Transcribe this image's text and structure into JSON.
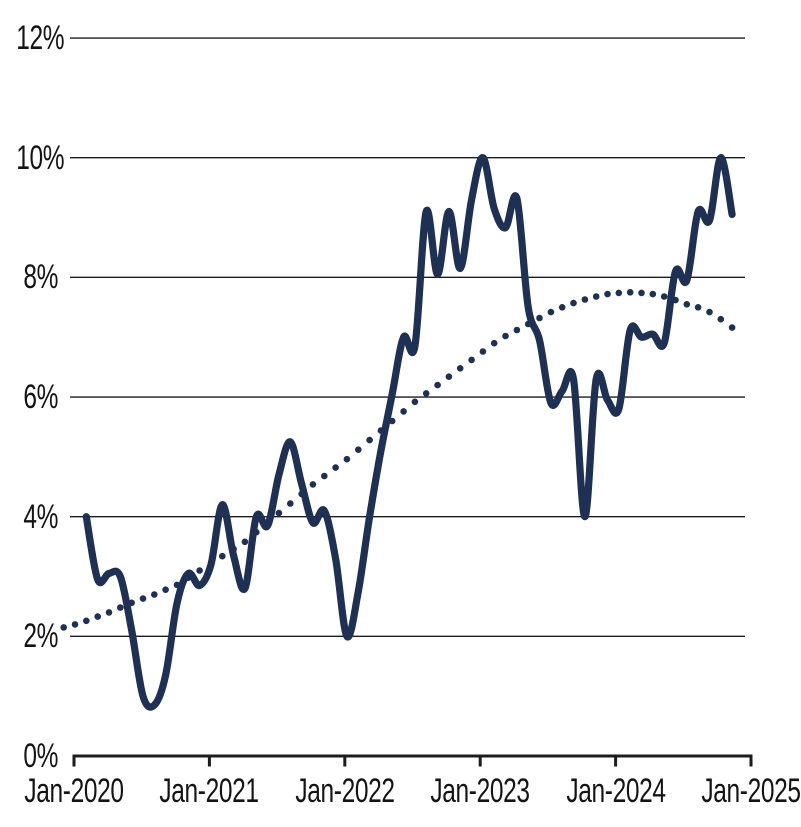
{
  "page": {
    "background": "#ffffff"
  },
  "chart_data": {
    "type": "line",
    "title": "",
    "legend": "none",
    "grid": "horizontal-only",
    "x_axis": {
      "tick_labels": [
        "Jan-2020",
        "Jan-2021",
        "Jan-2022",
        "Jan-2023",
        "Jan-2024",
        "Jan-2025"
      ],
      "unit": "month",
      "range_months_from_jan2020": [
        0,
        60
      ]
    },
    "y_axis": {
      "tick_labels_top_to_bottom": [
        "12%",
        "10%",
        "8%",
        "6%",
        "4%",
        "2%",
        "0%"
      ],
      "tick_values_top_to_bottom": [
        12,
        10,
        8,
        6,
        4,
        2,
        0
      ],
      "ylim": [
        0,
        12
      ],
      "unit": "percent"
    },
    "colors": {
      "line": "#1e3053",
      "grid": "#1c1c1c",
      "axis": "#1c1c1c",
      "text": "#141414"
    },
    "series": [
      {
        "id": "solid_line",
        "style": "solid",
        "start_month_offset_from_jan2020": 1,
        "values": [
          4.0,
          2.95,
          3.05,
          3.0,
          2.1,
          1.0,
          0.85,
          1.35,
          2.55,
          3.05,
          2.85,
          3.2,
          4.2,
          3.35,
          2.8,
          4.0,
          3.85,
          4.7,
          5.25,
          4.55,
          3.9,
          4.1,
          3.3,
          2.0,
          2.75,
          4.0,
          5.1,
          6.05,
          7.0,
          6.85,
          9.1,
          8.05,
          9.1,
          8.15,
          9.3,
          10.0,
          9.15,
          8.83,
          9.32,
          7.5,
          6.95,
          5.9,
          6.1,
          6.3,
          4.0,
          6.3,
          5.95,
          5.8,
          7.12,
          7.0,
          7.05,
          6.9,
          8.1,
          7.95,
          9.1,
          8.95,
          10.0,
          9.05
        ]
      },
      {
        "id": "dotted_trend",
        "style": "dotted",
        "start_month_offset_from_jan2020": -1,
        "values": [
          2.15,
          2.2,
          2.26,
          2.33,
          2.4,
          2.48,
          2.56,
          2.63,
          2.7,
          2.78,
          2.86,
          2.98,
          3.1,
          3.22,
          3.34,
          3.46,
          3.58,
          3.74,
          3.9,
          4.06,
          4.22,
          4.38,
          4.54,
          4.68,
          4.82,
          4.96,
          5.12,
          5.28,
          5.44,
          5.6,
          5.76,
          5.92,
          6.06,
          6.2,
          6.34,
          6.48,
          6.62,
          6.76,
          6.9,
          7.02,
          7.12,
          7.22,
          7.32,
          7.42,
          7.5,
          7.57,
          7.63,
          7.68,
          7.72,
          7.74,
          7.75,
          7.74,
          7.72,
          7.68,
          7.62,
          7.55,
          7.5,
          7.42,
          7.3,
          7.16
        ]
      }
    ]
  }
}
